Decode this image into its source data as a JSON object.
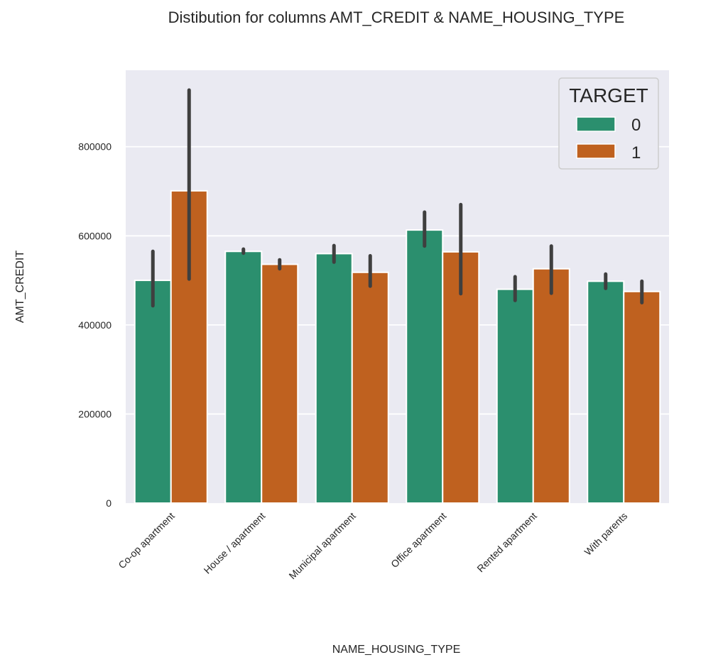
{
  "chart_data": {
    "type": "bar",
    "title": "Distibution for columns AMT_CREDIT &  NAME_HOUSING_TYPE",
    "xlabel": "NAME_HOUSING_TYPE",
    "ylabel": "AMT_CREDIT",
    "categories": [
      "Co-op apartment",
      "House / apartment",
      "Municipal apartment",
      "Office apartment",
      "Rented apartment",
      "With parents"
    ],
    "ylim": [
      0,
      970000
    ],
    "yticks": [
      0,
      200000,
      400000,
      600000,
      800000
    ],
    "ytick_labels": [
      "0",
      "200000",
      "400000",
      "600000",
      "800000"
    ],
    "grid": true,
    "legend": {
      "title": "TARGET",
      "placement": "top-right"
    },
    "series": [
      {
        "name": "0",
        "color": "#2b8f6e",
        "values": [
          500000,
          565000,
          560000,
          613000,
          480000,
          498000
        ],
        "err_low": [
          443000,
          561000,
          541000,
          577000,
          455000,
          482000
        ],
        "err_high": [
          565000,
          570000,
          578000,
          653000,
          508000,
          514000
        ]
      },
      {
        "name": "1",
        "color": "#bf611f",
        "values": [
          701000,
          536000,
          518000,
          564000,
          526000,
          475000
        ],
        "err_low": [
          503000,
          526000,
          487000,
          470000,
          471000,
          450000
        ],
        "err_high": [
          927000,
          546000,
          555000,
          670000,
          577000,
          498000
        ]
      }
    ]
  }
}
